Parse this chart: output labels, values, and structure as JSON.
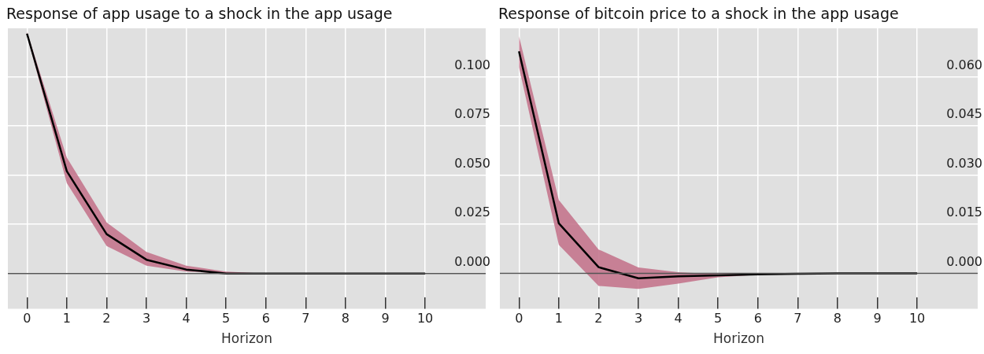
{
  "chart_data": [
    {
      "type": "line",
      "title": "Response of app usage to a shock in the app usage",
      "xlabel": "Horizon",
      "x": [
        0,
        1,
        2,
        3,
        4,
        5,
        6,
        7,
        8,
        9,
        10
      ],
      "series": [
        {
          "color": "#000000",
          "values": [
            0.122,
            0.052,
            0.02,
            0.007,
            0.002,
            0.0,
            0.0,
            0.0,
            0.0,
            0.0,
            0.0
          ],
          "upper": [
            0.123,
            0.059,
            0.026,
            0.011,
            0.004,
            0.001,
            0.0,
            0.0,
            0.0,
            0.0,
            0.0
          ],
          "lower": [
            0.121,
            0.046,
            0.014,
            0.004,
            0.001,
            0.0,
            0.0,
            0.0,
            0.0,
            0.0,
            0.0
          ]
        }
      ],
      "xlim": [
        -0.48,
        11.52
      ],
      "xticks": [
        0,
        1,
        2,
        3,
        4,
        5,
        6,
        7,
        8,
        9,
        10
      ],
      "ylim": [
        -0.0123,
        0.1247
      ],
      "yticks": [
        {
          "value": 0,
          "label": "0.000"
        },
        {
          "value": 0.025,
          "label": "0.025"
        },
        {
          "value": 0.05,
          "label": "0.050"
        },
        {
          "value": 0.075,
          "label": "0.075"
        },
        {
          "value": 0.1,
          "label": "0.100"
        }
      ],
      "ref_lines": [
        {
          "axis": "y",
          "value": 0,
          "color": "#555555"
        }
      ],
      "grid": true,
      "legend": false,
      "marker": "none",
      "line_style": "solid"
    },
    {
      "type": "line",
      "title": "Response of bitcoin price to a shock in the app usage",
      "xlabel": "Horizon",
      "x": [
        0,
        1,
        2,
        3,
        4,
        5,
        6,
        7,
        8,
        9,
        10
      ],
      "series": [
        {
          "color": "#000000",
          "values": [
            0.0678,
            0.0153,
            0.0019,
            -0.0015,
            -0.0009,
            -0.0006,
            -0.0003,
            -0.0001,
            0.0,
            0.0,
            0.0
          ],
          "upper": [
            0.0724,
            0.0224,
            0.0073,
            0.0018,
            0.0004,
            -0.0002,
            0.0,
            0.0,
            0.0,
            0.0,
            0.0
          ],
          "lower": [
            0.0629,
            0.0087,
            -0.0038,
            -0.0047,
            -0.0031,
            -0.0012,
            -0.0004,
            0.0,
            0.0,
            0.0,
            0.0
          ]
        }
      ],
      "xlim": [
        -0.48,
        11.52
      ],
      "xticks": [
        0,
        1,
        2,
        3,
        4,
        5,
        6,
        7,
        8,
        9,
        10
      ],
      "ylim": [
        -0.0074,
        0.0748
      ],
      "yticks": [
        {
          "value": 0,
          "label": "0.000"
        },
        {
          "value": 0.015,
          "label": "0.015"
        },
        {
          "value": 0.03,
          "label": "0.030"
        },
        {
          "value": 0.045,
          "label": "0.045"
        },
        {
          "value": 0.06,
          "label": "0.060"
        }
      ],
      "ref_lines": [
        {
          "axis": "y",
          "value": 0,
          "color": "#555555"
        }
      ],
      "grid": true,
      "legend": false,
      "marker": "none",
      "line_style": "solid"
    }
  ]
}
